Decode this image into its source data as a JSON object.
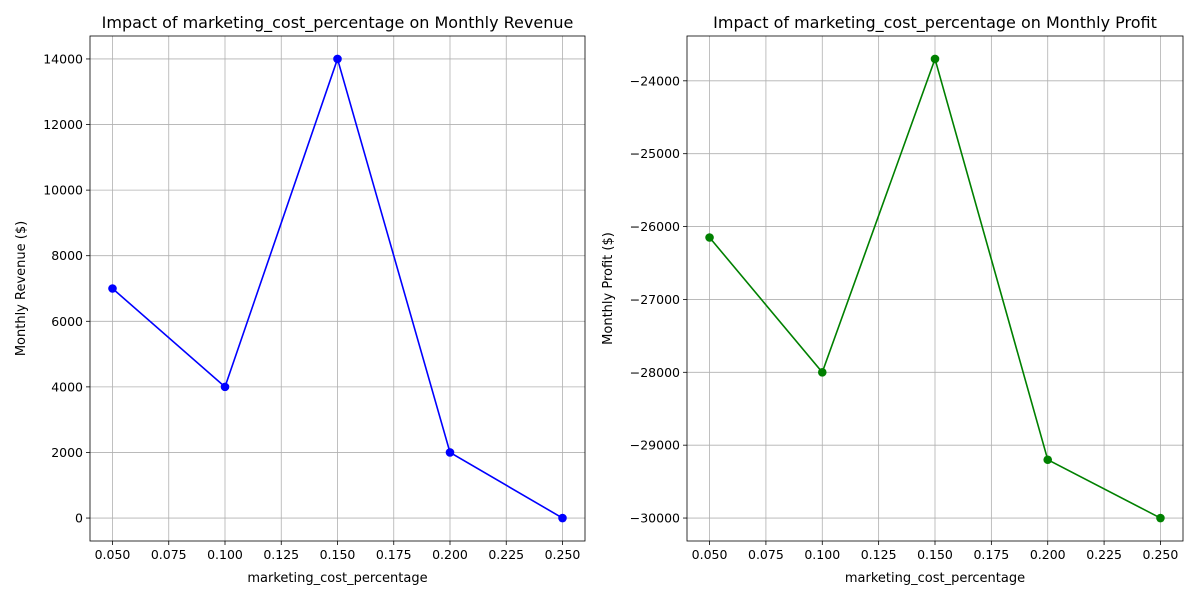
{
  "chart_data": [
    {
      "type": "line",
      "title": "Impact of marketing_cost_percentage on Monthly Revenue",
      "xlabel": "marketing_cost_percentage",
      "ylabel": "Monthly Revenue ($)",
      "x": [
        0.05,
        0.1,
        0.15,
        0.2,
        0.25
      ],
      "series": [
        {
          "values": [
            7000,
            4000,
            14000,
            2000,
            0
          ],
          "color": "#0000ff",
          "marker": "circle"
        }
      ],
      "xlim": [
        0.04,
        0.26
      ],
      "ylim": [
        -700,
        14700
      ],
      "xticks": [
        0.05,
        0.075,
        0.1,
        0.125,
        0.15,
        0.175,
        0.2,
        0.225,
        0.25
      ],
      "xtick_labels": [
        "0.050",
        "0.075",
        "0.100",
        "0.125",
        "0.150",
        "0.175",
        "0.200",
        "0.225",
        "0.250"
      ],
      "yticks": [
        0,
        2000,
        4000,
        6000,
        8000,
        10000,
        12000,
        14000
      ],
      "ytick_labels": [
        "0",
        "2000",
        "4000",
        "6000",
        "8000",
        "10000",
        "12000",
        "14000"
      ],
      "grid": true
    },
    {
      "type": "line",
      "title": "Impact of marketing_cost_percentage on Monthly Profit",
      "xlabel": "marketing_cost_percentage",
      "ylabel": "Monthly Profit ($)",
      "x": [
        0.05,
        0.1,
        0.15,
        0.2,
        0.25
      ],
      "series": [
        {
          "values": [
            -26150,
            -28000,
            -23700,
            -29200,
            -30000
          ],
          "color": "#008000",
          "marker": "circle"
        }
      ],
      "xlim": [
        0.04,
        0.26
      ],
      "ylim": [
        -30315,
        -23385
      ],
      "xticks": [
        0.05,
        0.075,
        0.1,
        0.125,
        0.15,
        0.175,
        0.2,
        0.225,
        0.25
      ],
      "xtick_labels": [
        "0.050",
        "0.075",
        "0.100",
        "0.125",
        "0.150",
        "0.175",
        "0.200",
        "0.225",
        "0.250"
      ],
      "yticks": [
        -30000,
        -29000,
        -28000,
        -27000,
        -26000,
        -25000,
        -24000
      ],
      "ytick_labels": [
        "−30000",
        "−29000",
        "−28000",
        "−27000",
        "−26000",
        "−25000",
        "−24000"
      ],
      "grid": true
    }
  ]
}
